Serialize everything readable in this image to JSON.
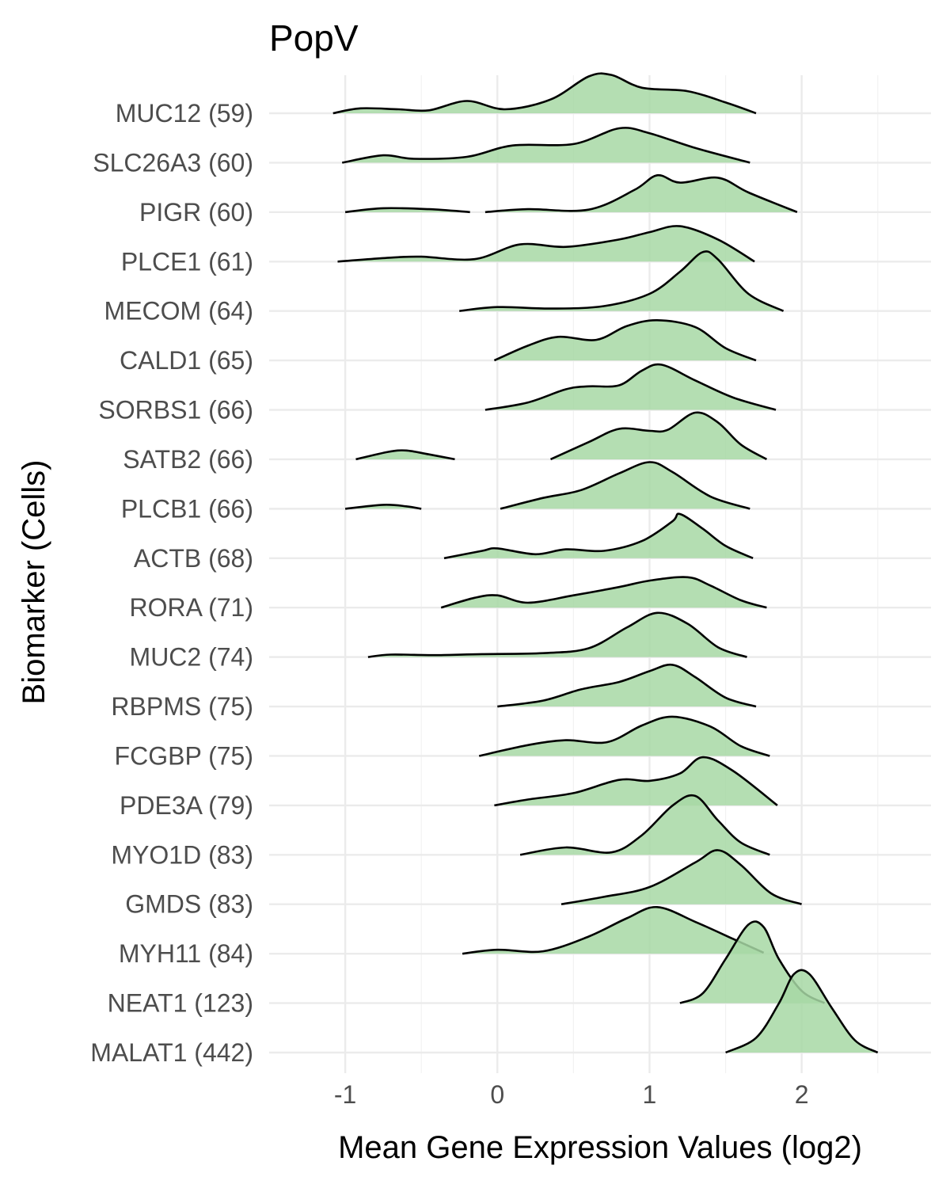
{
  "chart_data": {
    "type": "ridgeline",
    "title": "PopV",
    "xlabel": "Mean Gene Expression Values (log2)",
    "ylabel": "Biomarker (Cells)",
    "xlim": [
      -1.5,
      2.85
    ],
    "x_ticks": [
      -1,
      0,
      1,
      2
    ],
    "x_tick_labels": [
      "-1",
      "0",
      "1",
      "2"
    ],
    "grid": true,
    "fill_color": "#a7d8a5",
    "line_color": "#000000",
    "series": [
      {
        "label": "MUC12 (59)",
        "segments": [
          [
            [
              -1.08,
              0
            ],
            [
              -0.9,
              0.1
            ],
            [
              -0.65,
              0.08
            ],
            [
              -0.45,
              0.06
            ],
            [
              -0.2,
              0.25
            ],
            [
              0.05,
              0.08
            ],
            [
              0.35,
              0.28
            ],
            [
              0.6,
              0.75
            ],
            [
              0.75,
              0.78
            ],
            [
              0.95,
              0.52
            ],
            [
              1.25,
              0.45
            ],
            [
              1.5,
              0.22
            ],
            [
              1.7,
              0.0
            ]
          ]
        ]
      },
      {
        "label": "SLC26A3 (60)",
        "segments": [
          [
            [
              -1.02,
              0
            ],
            [
              -0.75,
              0.15
            ],
            [
              -0.55,
              0.08
            ],
            [
              -0.2,
              0.12
            ],
            [
              0.1,
              0.35
            ],
            [
              0.5,
              0.38
            ],
            [
              0.8,
              0.7
            ],
            [
              1.0,
              0.6
            ],
            [
              1.3,
              0.3
            ],
            [
              1.66,
              0.0
            ]
          ]
        ]
      },
      {
        "label": "PIGR (60)",
        "segments": [
          [
            [
              -1.0,
              0
            ],
            [
              -0.75,
              0.08
            ],
            [
              -0.45,
              0.06
            ],
            [
              -0.18,
              0.0
            ]
          ],
          [
            [
              -0.08,
              0
            ],
            [
              0.2,
              0.06
            ],
            [
              0.6,
              0.05
            ],
            [
              0.9,
              0.45
            ],
            [
              1.05,
              0.75
            ],
            [
              1.2,
              0.6
            ],
            [
              1.45,
              0.7
            ],
            [
              1.65,
              0.4
            ],
            [
              1.97,
              0.0
            ]
          ]
        ]
      },
      {
        "label": "PLCE1 (61)",
        "segments": [
          [
            [
              -1.05,
              0
            ],
            [
              -0.7,
              0.08
            ],
            [
              -0.5,
              0.1
            ],
            [
              -0.15,
              0.05
            ],
            [
              0.15,
              0.35
            ],
            [
              0.45,
              0.3
            ],
            [
              0.8,
              0.45
            ],
            [
              1.0,
              0.6
            ],
            [
              1.2,
              0.72
            ],
            [
              1.45,
              0.45
            ],
            [
              1.69,
              0.0
            ]
          ]
        ]
      },
      {
        "label": "MECOM (64)",
        "segments": [
          [
            [
              -0.25,
              0
            ],
            [
              0.0,
              0.08
            ],
            [
              0.35,
              0.05
            ],
            [
              0.7,
              0.1
            ],
            [
              1.0,
              0.35
            ],
            [
              1.2,
              0.8
            ],
            [
              1.35,
              1.2
            ],
            [
              1.45,
              1.05
            ],
            [
              1.65,
              0.35
            ],
            [
              1.88,
              0.0
            ]
          ]
        ]
      },
      {
        "label": "CALD1 (65)",
        "segments": [
          [
            [
              -0.02,
              0
            ],
            [
              0.2,
              0.3
            ],
            [
              0.4,
              0.48
            ],
            [
              0.65,
              0.42
            ],
            [
              0.85,
              0.7
            ],
            [
              1.05,
              0.82
            ],
            [
              1.3,
              0.68
            ],
            [
              1.5,
              0.25
            ],
            [
              1.7,
              0.0
            ]
          ]
        ]
      },
      {
        "label": "SORBS1 (66)",
        "segments": [
          [
            [
              -0.08,
              0
            ],
            [
              0.2,
              0.15
            ],
            [
              0.45,
              0.42
            ],
            [
              0.6,
              0.48
            ],
            [
              0.8,
              0.5
            ],
            [
              0.95,
              0.8
            ],
            [
              1.08,
              0.92
            ],
            [
              1.3,
              0.6
            ],
            [
              1.55,
              0.25
            ],
            [
              1.83,
              0.0
            ]
          ]
        ]
      },
      {
        "label": "SATB2 (66)",
        "segments": [
          [
            [
              -0.93,
              0
            ],
            [
              -0.72,
              0.15
            ],
            [
              -0.6,
              0.18
            ],
            [
              -0.45,
              0.1
            ],
            [
              -0.28,
              0.0
            ]
          ],
          [
            [
              0.35,
              0
            ],
            [
              0.6,
              0.35
            ],
            [
              0.8,
              0.62
            ],
            [
              1.0,
              0.58
            ],
            [
              1.12,
              0.6
            ],
            [
              1.3,
              0.95
            ],
            [
              1.45,
              0.75
            ],
            [
              1.6,
              0.3
            ],
            [
              1.77,
              0.0
            ]
          ]
        ]
      },
      {
        "label": "PLCB1 (66)",
        "segments": [
          [
            [
              -1.0,
              0
            ],
            [
              -0.75,
              0.08
            ],
            [
              -0.6,
              0.05
            ],
            [
              -0.5,
              0.0
            ]
          ],
          [
            [
              0.02,
              0
            ],
            [
              0.3,
              0.22
            ],
            [
              0.55,
              0.38
            ],
            [
              0.8,
              0.72
            ],
            [
              1.0,
              0.95
            ],
            [
              1.15,
              0.75
            ],
            [
              1.4,
              0.25
            ],
            [
              1.66,
              0.0
            ]
          ]
        ]
      },
      {
        "label": "ACTB (68)",
        "segments": [
          [
            [
              -0.35,
              0
            ],
            [
              -0.1,
              0.15
            ],
            [
              0.0,
              0.2
            ],
            [
              0.25,
              0.08
            ],
            [
              0.45,
              0.18
            ],
            [
              0.7,
              0.15
            ],
            [
              0.95,
              0.35
            ],
            [
              1.15,
              0.75
            ],
            [
              1.2,
              0.9
            ],
            [
              1.35,
              0.6
            ],
            [
              1.5,
              0.25
            ],
            [
              1.68,
              0.0
            ]
          ]
        ]
      },
      {
        "label": "RORA (71)",
        "segments": [
          [
            [
              -0.37,
              0
            ],
            [
              -0.15,
              0.2
            ],
            [
              0.0,
              0.25
            ],
            [
              0.2,
              0.1
            ],
            [
              0.5,
              0.25
            ],
            [
              0.8,
              0.42
            ],
            [
              1.0,
              0.55
            ],
            [
              1.25,
              0.62
            ],
            [
              1.4,
              0.45
            ],
            [
              1.6,
              0.15
            ],
            [
              1.77,
              0.0
            ]
          ]
        ]
      },
      {
        "label": "MUC2 (74)",
        "segments": [
          [
            [
              -0.85,
              0
            ],
            [
              -0.7,
              0.05
            ],
            [
              -0.4,
              0.04
            ],
            [
              -0.1,
              0.06
            ],
            [
              0.3,
              0.08
            ],
            [
              0.6,
              0.18
            ],
            [
              0.85,
              0.6
            ],
            [
              1.05,
              0.9
            ],
            [
              1.25,
              0.68
            ],
            [
              1.45,
              0.2
            ],
            [
              1.64,
              0.0
            ]
          ]
        ]
      },
      {
        "label": "RBPMS (75)",
        "segments": [
          [
            [
              0.0,
              0
            ],
            [
              0.3,
              0.12
            ],
            [
              0.55,
              0.35
            ],
            [
              0.8,
              0.5
            ],
            [
              1.0,
              0.72
            ],
            [
              1.15,
              0.85
            ],
            [
              1.3,
              0.6
            ],
            [
              1.5,
              0.18
            ],
            [
              1.7,
              0.0
            ]
          ]
        ]
      },
      {
        "label": "FCGBP (75)",
        "segments": [
          [
            [
              -0.12,
              0
            ],
            [
              0.2,
              0.22
            ],
            [
              0.45,
              0.32
            ],
            [
              0.72,
              0.28
            ],
            [
              0.95,
              0.62
            ],
            [
              1.15,
              0.8
            ],
            [
              1.4,
              0.6
            ],
            [
              1.6,
              0.2
            ],
            [
              1.79,
              0.0
            ]
          ]
        ]
      },
      {
        "label": "PDE3A (79)",
        "segments": [
          [
            [
              -0.02,
              0
            ],
            [
              0.2,
              0.12
            ],
            [
              0.5,
              0.25
            ],
            [
              0.8,
              0.52
            ],
            [
              1.0,
              0.5
            ],
            [
              1.2,
              0.65
            ],
            [
              1.35,
              0.98
            ],
            [
              1.55,
              0.7
            ],
            [
              1.84,
              0.0
            ]
          ]
        ]
      },
      {
        "label": "MYO1D (83)",
        "segments": [
          [
            [
              0.15,
              0
            ],
            [
              0.45,
              0.15
            ],
            [
              0.75,
              0.05
            ],
            [
              0.95,
              0.4
            ],
            [
              1.15,
              1.0
            ],
            [
              1.3,
              1.2
            ],
            [
              1.45,
              0.7
            ],
            [
              1.6,
              0.25
            ],
            [
              1.79,
              0.0
            ]
          ]
        ]
      },
      {
        "label": "GMDS (83)",
        "segments": [
          [
            [
              0.42,
              0
            ],
            [
              0.7,
              0.15
            ],
            [
              1.0,
              0.35
            ],
            [
              1.3,
              0.85
            ],
            [
              1.45,
              1.1
            ],
            [
              1.6,
              0.8
            ],
            [
              1.8,
              0.22
            ],
            [
              2.0,
              0.0
            ]
          ]
        ]
      },
      {
        "label": "MYH11 (84)",
        "segments": [
          [
            [
              -0.23,
              0
            ],
            [
              0.0,
              0.08
            ],
            [
              0.3,
              0.05
            ],
            [
              0.6,
              0.35
            ],
            [
              0.85,
              0.72
            ],
            [
              1.05,
              0.95
            ],
            [
              1.3,
              0.65
            ],
            [
              1.55,
              0.3
            ],
            [
              1.75,
              0.02
            ]
          ]
        ]
      },
      {
        "label": "NEAT1 (123)",
        "segments": [
          [
            [
              1.2,
              0
            ],
            [
              1.35,
              0.2
            ],
            [
              1.5,
              0.9
            ],
            [
              1.65,
              1.6
            ],
            [
              1.75,
              1.55
            ],
            [
              1.85,
              0.9
            ],
            [
              2.0,
              0.25
            ],
            [
              2.15,
              0.0
            ]
          ]
        ]
      },
      {
        "label": "MALAT1 (442)",
        "segments": [
          [
            [
              1.5,
              0
            ],
            [
              1.7,
              0.3
            ],
            [
              1.85,
              1.0
            ],
            [
              1.95,
              1.6
            ],
            [
              2.05,
              1.6
            ],
            [
              2.2,
              0.9
            ],
            [
              2.35,
              0.25
            ],
            [
              2.5,
              0.0
            ]
          ]
        ]
      }
    ]
  }
}
